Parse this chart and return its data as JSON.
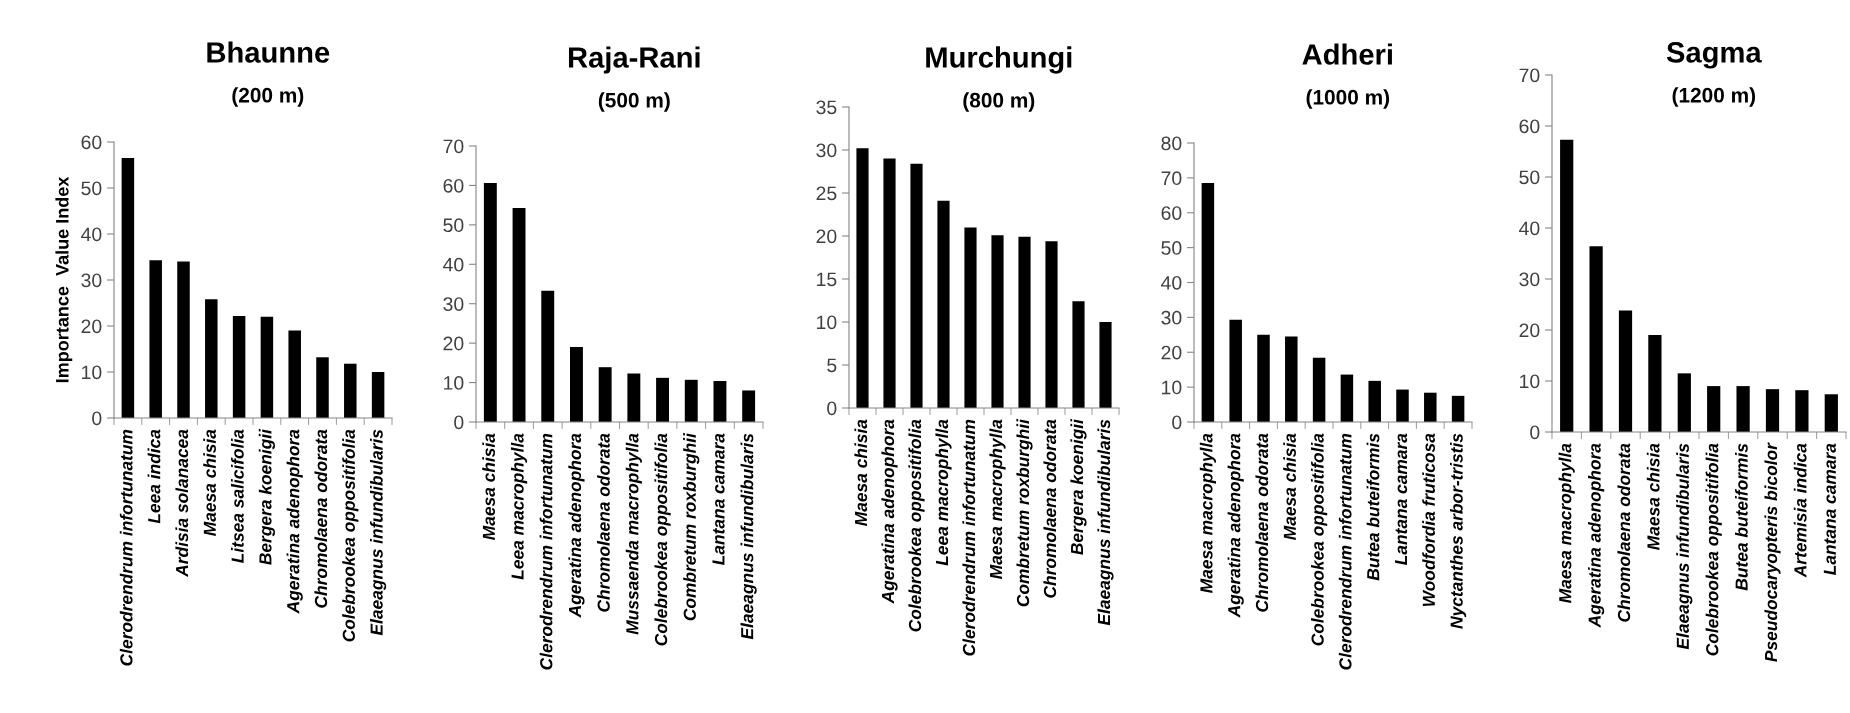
{
  "chart_data": [
    {
      "type": "bar",
      "title": "Bhaunne",
      "subtitle": "(200 m)",
      "ylabel": "Importance  Value Index",
      "color": "#000000",
      "ylim": [
        0,
        60
      ],
      "yticks": [
        0,
        10,
        20,
        30,
        40,
        50,
        60
      ],
      "categories": [
        "Clerodrendrum infortunatum",
        "Leea indica",
        "Ardisia solanacea",
        "Maesa chisia",
        "Litsea salicifolia",
        "Bergera koenigii",
        "Ageratina adenophora",
        "Chromolaena odorata",
        "Colebrookea oppositifolia",
        "Elaeagnus infundibularis"
      ],
      "values": [
        56.5,
        34.3,
        34,
        25.8,
        22.2,
        22,
        19,
        13.2,
        11.8,
        10
      ]
    },
    {
      "type": "bar",
      "title": "Raja-Rani",
      "subtitle": "(500 m)",
      "color": "#000000",
      "ylim": [
        0,
        70
      ],
      "yticks": [
        0,
        10,
        20,
        30,
        40,
        50,
        60,
        70
      ],
      "categories": [
        "Maesa chisia",
        "Leea macrophylla",
        "Clerodrendrum infortunatum",
        "Ageratina adenophora",
        "Chromolaena odorata",
        "Mussaenda macrophylla",
        "Colebrookea oppositifolia",
        "Combretum roxburghii",
        "Lantana camara",
        "Elaeagnus infundibularis"
      ],
      "values": [
        60.6,
        54.3,
        33.3,
        19,
        13.9,
        12.3,
        11.2,
        10.7,
        10.4,
        8
      ]
    },
    {
      "type": "bar",
      "title": "Murchungi",
      "subtitle": "(800 m)",
      "color": "#000000",
      "ylim": [
        0,
        35
      ],
      "yticks": [
        0,
        5,
        10,
        15,
        20,
        25,
        30,
        35
      ],
      "categories": [
        "Maesa chisia",
        "Ageratina adenophora",
        "Colebrookea oppositifolia",
        "Leea macrophylla",
        "Clerodrendrum infortunatum",
        "Maesa macrophylla",
        "Combretum roxburghii",
        "Chromolaena odorata",
        "Bergera koenigii",
        "Elaeagnus infundibularis"
      ],
      "values": [
        30.2,
        29,
        28.4,
        24.1,
        21,
        20.1,
        19.9,
        19.4,
        12.4,
        10
      ]
    },
    {
      "type": "bar",
      "title": "Adheri",
      "subtitle": "(1000 m)",
      "color": "#000000",
      "ylim": [
        0,
        80
      ],
      "yticks": [
        0,
        10,
        20,
        30,
        40,
        50,
        60,
        70,
        80
      ],
      "categories": [
        "Maesa macrophylla",
        "Ageratina adenophora",
        "Chromolaena odorata",
        "Maesa chisia",
        "Colebrookea oppositifolia",
        "Clerodrendrum infortunatum",
        "Butea buteiformis",
        "Lantana camara",
        "Woodfordia fruticosa",
        "Nyctanthes arbor-tristis"
      ],
      "values": [
        68.5,
        29.3,
        25,
        24.5,
        18.4,
        13.6,
        11.8,
        9.3,
        8.4,
        7.5
      ]
    },
    {
      "type": "bar",
      "title": "Sagma",
      "subtitle": "(1200 m)",
      "color": "#000000",
      "ylim": [
        0,
        70
      ],
      "yticks": [
        0,
        10,
        20,
        30,
        40,
        50,
        60,
        70
      ],
      "categories": [
        "Maesa macrophylla",
        "Ageratina adenophora",
        "Chromolaena odorata",
        "Maesa chisia",
        "Elaeagnus infundibularis",
        "Colebrookea oppositifolia",
        "Butea buteiformis",
        "Pseudocaryopteris bicolor",
        "Artemisia indica",
        "Lantana camara"
      ],
      "values": [
        57.3,
        36.4,
        23.8,
        19,
        11.5,
        9,
        9,
        8.4,
        8.2,
        7.4
      ]
    }
  ]
}
